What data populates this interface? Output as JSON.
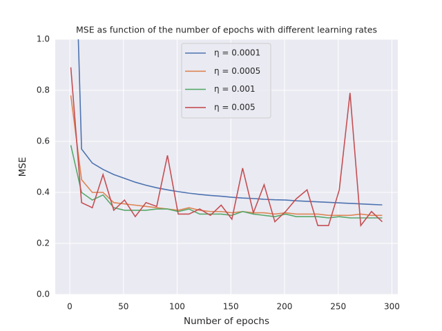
{
  "chart_data": {
    "type": "line",
    "title": "MSE as function of the number of epochs with different learning rates",
    "xlabel": "Number of epochs",
    "ylabel": "MSE",
    "x": [
      1,
      11,
      21,
      31,
      41,
      51,
      61,
      71,
      81,
      91,
      101,
      111,
      121,
      131,
      141,
      151,
      161,
      171,
      181,
      191,
      201,
      211,
      221,
      231,
      241,
      251,
      261,
      271,
      281,
      291
    ],
    "series": [
      {
        "name": "η = 0.0001",
        "color": "#4c72b0",
        "values": [
          2.0,
          0.57,
          0.515,
          0.49,
          0.47,
          0.455,
          0.44,
          0.428,
          0.418,
          0.41,
          0.403,
          0.397,
          0.392,
          0.388,
          0.385,
          0.381,
          0.378,
          0.376,
          0.373,
          0.371,
          0.37,
          0.367,
          0.365,
          0.363,
          0.361,
          0.359,
          0.357,
          0.355,
          0.353,
          0.351
        ]
      },
      {
        "name": "η = 0.0005",
        "color": "#dd8452",
        "values": [
          0.78,
          0.45,
          0.4,
          0.4,
          0.36,
          0.355,
          0.35,
          0.345,
          0.34,
          0.335,
          0.33,
          0.34,
          0.33,
          0.325,
          0.325,
          0.32,
          0.325,
          0.32,
          0.32,
          0.315,
          0.32,
          0.315,
          0.315,
          0.315,
          0.31,
          0.31,
          0.31,
          0.315,
          0.31,
          0.31
        ]
      },
      {
        "name": "η = 0.001",
        "color": "#55a868",
        "values": [
          0.585,
          0.4,
          0.37,
          0.39,
          0.34,
          0.33,
          0.33,
          0.33,
          0.335,
          0.335,
          0.325,
          0.335,
          0.315,
          0.315,
          0.315,
          0.31,
          0.325,
          0.315,
          0.31,
          0.305,
          0.315,
          0.305,
          0.305,
          0.305,
          0.3,
          0.305,
          0.3,
          0.3,
          0.3,
          0.3
        ]
      },
      {
        "name": "η = 0.005",
        "color": "#c44e52",
        "values": [
          0.89,
          0.36,
          0.34,
          0.47,
          0.33,
          0.37,
          0.305,
          0.36,
          0.345,
          0.545,
          0.315,
          0.315,
          0.335,
          0.31,
          0.35,
          0.295,
          0.495,
          0.32,
          0.43,
          0.285,
          0.325,
          0.375,
          0.41,
          0.27,
          0.27,
          0.41,
          0.79,
          0.27,
          0.325,
          0.285
        ]
      }
    ],
    "xlim": [
      -13.5,
      305.5
    ],
    "ylim": [
      0,
      1
    ],
    "xticks": [
      0,
      50,
      100,
      150,
      200,
      250,
      300
    ],
    "yticks": [
      {
        "value": 0,
        "label": "0.0"
      },
      0.2,
      0.4,
      0.6,
      0.8,
      {
        "value": 1,
        "label": "1.0"
      }
    ],
    "grid": true,
    "legend": "upper center"
  }
}
